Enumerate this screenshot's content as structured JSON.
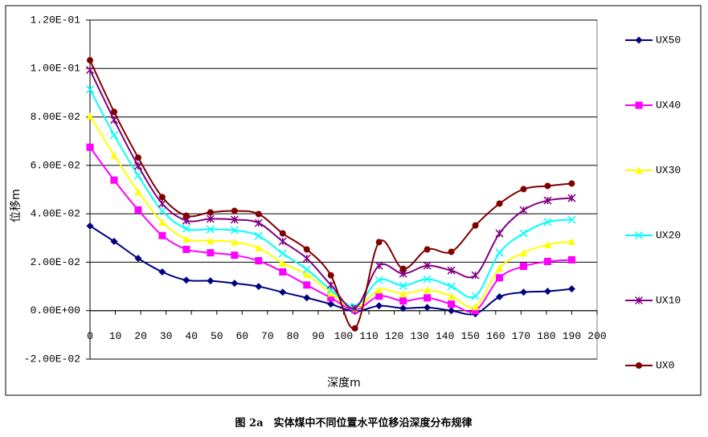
{
  "chart_data": {
    "type": "line",
    "caption": "图 2a　实体煤中不同位置水平位移沿深度分布规律",
    "x_label": "深度m",
    "y_label": "位移m",
    "x": [
      0,
      9.5,
      19,
      28.5,
      38,
      47.5,
      57,
      66.5,
      76,
      85.5,
      95,
      104.5,
      114,
      123.5,
      133,
      142.5,
      152,
      161.5,
      171,
      180.5,
      190
    ],
    "xlim": [
      0,
      200
    ],
    "xticks": [
      0,
      10,
      20,
      30,
      40,
      50,
      60,
      70,
      80,
      90,
      100,
      110,
      120,
      130,
      140,
      150,
      160,
      170,
      180,
      190,
      200
    ],
    "ylim": [
      -0.02,
      0.12
    ],
    "yticks": [
      {
        "value": -0.02,
        "label": "-2.00E-02"
      },
      {
        "value": 0,
        "label": "0.00E+00"
      },
      {
        "value": 0.02,
        "label": "2.00E-02"
      },
      {
        "value": 0.04,
        "label": "4.00E-02"
      },
      {
        "value": 0.06,
        "label": "6.00E-02"
      },
      {
        "value": 0.08,
        "label": "8.00E-02"
      },
      {
        "value": 0.1,
        "label": "1.00E-01"
      },
      {
        "value": 0.12,
        "label": "1.20E-01"
      }
    ],
    "grid": true,
    "legend": "right",
    "smooth": true,
    "series": [
      {
        "name": "UX50",
        "color": "#000080",
        "marker": "diamond",
        "values": [
          0.035,
          0.0286,
          0.0216,
          0.016,
          0.0126,
          0.0123,
          0.0113,
          0.01,
          0.0076,
          0.0053,
          0.0027,
          -0.0003,
          0.002,
          0.001,
          0.0013,
          0,
          -0.0013,
          0.0057,
          0.0076,
          0.008,
          0.009
        ]
      },
      {
        "name": "UX40",
        "color": "#ff00ff",
        "marker": "square",
        "values": [
          0.0675,
          0.0539,
          0.0416,
          0.031,
          0.0253,
          0.0239,
          0.0229,
          0.0206,
          0.016,
          0.0106,
          0.0053,
          0.0003,
          0.006,
          0.004,
          0.0053,
          0.0027,
          0,
          0.0136,
          0.0183,
          0.0203,
          0.021
        ]
      },
      {
        "name": "UX30",
        "color": "#ffff00",
        "marker": "triangle",
        "values": [
          0.0804,
          0.0642,
          0.0492,
          0.0366,
          0.0296,
          0.0289,
          0.0283,
          0.0259,
          0.0196,
          0.015,
          0.0073,
          0.001,
          0.0086,
          0.007,
          0.0086,
          0.006,
          0.0017,
          0.0176,
          0.0239,
          0.0273,
          0.0286
        ]
      },
      {
        "name": "UX20",
        "color": "#00ffff",
        "marker": "x",
        "values": [
          0.0914,
          0.0725,
          0.0558,
          0.0412,
          0.0339,
          0.0336,
          0.0332,
          0.0309,
          0.0236,
          0.017,
          0.0086,
          0.0017,
          0.0126,
          0.0103,
          0.013,
          0.01,
          0.006,
          0.0239,
          0.0319,
          0.0366,
          0.0376
        ]
      },
      {
        "name": "UX10",
        "color": "#800080",
        "marker": "star",
        "values": [
          0.0994,
          0.0788,
          0.0598,
          0.0442,
          0.0372,
          0.0379,
          0.0376,
          0.0362,
          0.0286,
          0.0216,
          0.0106,
          0.001,
          0.0186,
          0.0153,
          0.0186,
          0.0166,
          0.0146,
          0.0319,
          0.0415,
          0.0455,
          0.0465
        ]
      },
      {
        "name": "UX0",
        "color": "#800000",
        "marker": "circle",
        "values": [
          0.1034,
          0.0821,
          0.0632,
          0.0469,
          0.0392,
          0.0406,
          0.0412,
          0.0399,
          0.0319,
          0.0253,
          0.0146,
          -0.0073,
          0.0283,
          0.0173,
          0.0253,
          0.0243,
          0.0352,
          0.0442,
          0.0502,
          0.0515,
          0.0525
        ]
      }
    ]
  }
}
